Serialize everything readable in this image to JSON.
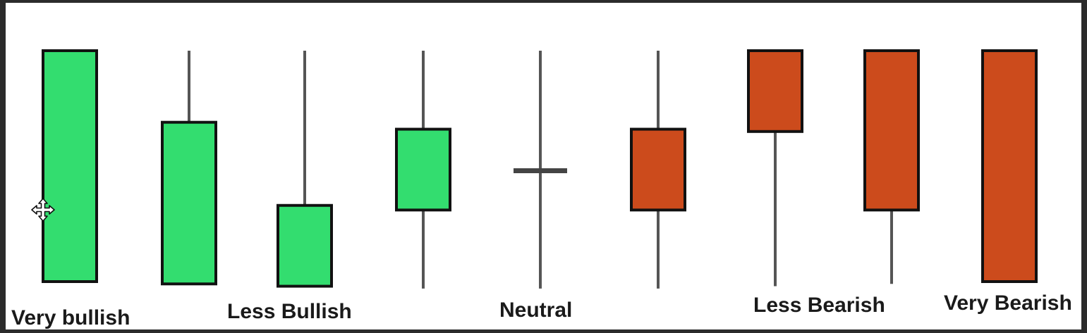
{
  "labels": {
    "very_bullish": "Very bullish",
    "less_bullish": "Less Bullish",
    "neutral": "Neutral",
    "less_bearish": "Less Bearish",
    "very_bearish": "Very Bearish"
  },
  "colors": {
    "bullish": "#33dd6f",
    "bearish": "#cc4b1c",
    "outline": "#111111",
    "wick": "#555555"
  },
  "candles": [
    {
      "type": "bullish",
      "wick_high": 0,
      "body_top": 0,
      "body_bottom": 100,
      "wick_low": 100
    },
    {
      "type": "bullish",
      "wick_high": 0,
      "body_top": 31,
      "body_bottom": 101,
      "wick_low": 101
    },
    {
      "type": "bullish",
      "wick_high": 0,
      "body_top": 67,
      "body_bottom": 102,
      "wick_low": 102
    },
    {
      "type": "bullish",
      "wick_high": 0,
      "body_top": 34,
      "body_bottom": 69,
      "wick_low": 103
    },
    {
      "type": "neutral",
      "wick_high": 0,
      "body_top": 52,
      "body_bottom": 52,
      "wick_low": 103
    },
    {
      "type": "bearish",
      "wick_high": 0,
      "body_top": 34,
      "body_bottom": 69,
      "wick_low": 103
    },
    {
      "type": "bearish",
      "wick_high": 0,
      "body_top": 0,
      "body_bottom": 35,
      "wick_low": 102
    },
    {
      "type": "bearish",
      "wick_high": 0,
      "body_top": 0,
      "body_bottom": 69,
      "wick_low": 101
    },
    {
      "type": "bearish",
      "wick_high": 0,
      "body_top": 0,
      "body_bottom": 100,
      "wick_low": 100
    }
  ],
  "cursor_icon": "move-cursor-icon"
}
